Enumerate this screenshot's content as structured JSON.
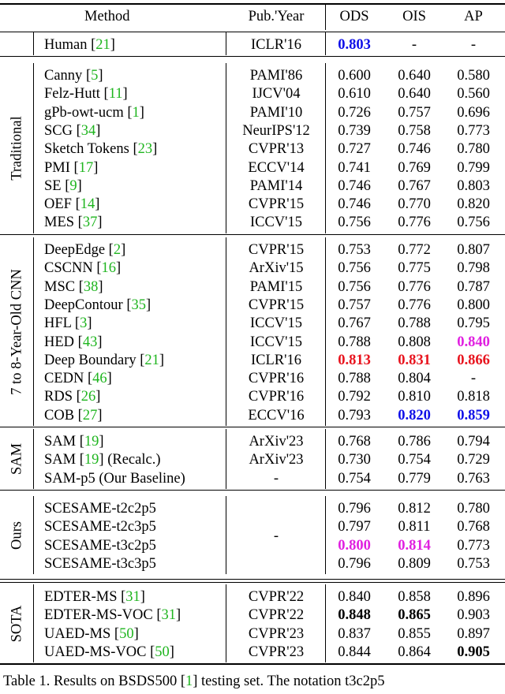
{
  "header": {
    "method": "Method",
    "pub_year": "Pub.'Year",
    "ods": "ODS",
    "ois": "OIS",
    "ap": "AP"
  },
  "groups": [
    {
      "label": "",
      "rows": [
        {
          "method": "Human ",
          "ref": "21",
          "pub": "ICLR'16",
          "ods": "0.803",
          "ois": "-",
          "ap": "-",
          "hl": {
            "ods": "blue"
          }
        }
      ]
    },
    {
      "label": "Traditional",
      "rows": [
        {
          "method": "Canny ",
          "ref": "5",
          "pub": "PAMI'86",
          "ods": "0.600",
          "ois": "0.640",
          "ap": "0.580"
        },
        {
          "method": "Felz-Hutt ",
          "ref": "11",
          "pub": "IJCV'04",
          "ods": "0.610",
          "ois": "0.640",
          "ap": "0.560"
        },
        {
          "method": "gPb-owt-ucm ",
          "ref": "1",
          "pub": "PAMI'10",
          "ods": "0.726",
          "ois": "0.757",
          "ap": "0.696"
        },
        {
          "method": "SCG ",
          "ref": "34",
          "pub": "NeurIPS'12",
          "ods": "0.739",
          "ois": "0.758",
          "ap": "0.773"
        },
        {
          "method": "Sketch Tokens ",
          "ref": "23",
          "pub": "CVPR'13",
          "ods": "0.727",
          "ois": "0.746",
          "ap": "0.780"
        },
        {
          "method": "PMI ",
          "ref": "17",
          "pub": "ECCV'14",
          "ods": "0.741",
          "ois": "0.769",
          "ap": "0.799"
        },
        {
          "method": "SE ",
          "ref": "9",
          "pub": "PAMI'14",
          "ods": "0.746",
          "ois": "0.767",
          "ap": "0.803"
        },
        {
          "method": "OEF ",
          "ref": "14",
          "pub": "CVPR'15",
          "ods": "0.746",
          "ois": "0.770",
          "ap": "0.820"
        },
        {
          "method": "MES ",
          "ref": "37",
          "pub": "ICCV'15",
          "ods": "0.756",
          "ois": "0.776",
          "ap": "0.756"
        }
      ]
    },
    {
      "label": "7 to 8-Year-Old CNN",
      "rows": [
        {
          "method": "DeepEdge ",
          "ref": "2",
          "pub": "CVPR'15",
          "ods": "0.753",
          "ois": "0.772",
          "ap": "0.807"
        },
        {
          "method": "CSCNN ",
          "ref": "16",
          "pub": "ArXiv'15",
          "ods": "0.756",
          "ois": "0.775",
          "ap": "0.798"
        },
        {
          "method": "MSC ",
          "ref": "38",
          "pub": "PAMI'15",
          "ods": "0.756",
          "ois": "0.776",
          "ap": "0.787"
        },
        {
          "method": "DeepContour ",
          "ref": "35",
          "pub": "CVPR'15",
          "ods": "0.757",
          "ois": "0.776",
          "ap": "0.800"
        },
        {
          "method": "HFL ",
          "ref": "3",
          "pub": "ICCV'15",
          "ods": "0.767",
          "ois": "0.788",
          "ap": "0.795"
        },
        {
          "method": "HED ",
          "ref": "43",
          "pub": "ICCV'15",
          "ods": "0.788",
          "ois": "0.808",
          "ap": "0.840",
          "hl": {
            "ap": "mag"
          }
        },
        {
          "method": "Deep Boundary ",
          "ref": "21",
          "pub": "ICLR'16",
          "ods": "0.813",
          "ois": "0.831",
          "ap": "0.866",
          "hl": {
            "ods": "red",
            "ois": "red",
            "ap": "red"
          }
        },
        {
          "method": "CEDN ",
          "ref": "46",
          "pub": "CVPR'16",
          "ods": "0.788",
          "ois": "0.804",
          "ap": "-"
        },
        {
          "method": "RDS ",
          "ref": "26",
          "pub": "CVPR'16",
          "ods": "0.792",
          "ois": "0.810",
          "ap": "0.818"
        },
        {
          "method": "COB ",
          "ref": "27",
          "pub": "ECCV'16",
          "ods": "0.793",
          "ois": "0.820",
          "ap": "0.859",
          "hl": {
            "ois": "blue",
            "ap": "blue"
          }
        }
      ]
    },
    {
      "label": "SAM",
      "rows": [
        {
          "method": "SAM ",
          "ref": "19",
          "pub": "ArXiv'23",
          "ods": "0.768",
          "ois": "0.786",
          "ap": "0.794"
        },
        {
          "method": "SAM ",
          "ref": "19",
          "suffix": " (Recalc.)",
          "pub": "ArXiv'23",
          "ods": "0.730",
          "ois": "0.754",
          "ap": "0.729"
        },
        {
          "method": "SAM-p5 (Our Baseline)",
          "pub": "-",
          "ods": "0.754",
          "ois": "0.779",
          "ap": "0.763"
        }
      ]
    },
    {
      "label": "Ours",
      "shared_pub": "-",
      "rows": [
        {
          "method": "SCESAME-t2c2p5",
          "ods": "0.796",
          "ois": "0.812",
          "ap": "0.780"
        },
        {
          "method": "SCESAME-t2c3p5",
          "ods": "0.797",
          "ois": "0.811",
          "ap": "0.768"
        },
        {
          "method": "SCESAME-t3c2p5",
          "ods": "0.800",
          "ois": "0.814",
          "ap": "0.773",
          "hl": {
            "ods": "mag",
            "ois": "mag"
          }
        },
        {
          "method": "SCESAME-t3c3p5",
          "ods": "0.796",
          "ois": "0.809",
          "ap": "0.753"
        }
      ]
    },
    {
      "label": "SOTA",
      "rows": [
        {
          "method": "EDTER-MS ",
          "ref": "31",
          "pub": "CVPR'22",
          "ods": "0.840",
          "ois": "0.858",
          "ap": "0.896"
        },
        {
          "method": "EDTER-MS-VOC ",
          "ref": "31",
          "pub": "CVPR'22",
          "ods": "0.848",
          "ois": "0.865",
          "ap": "0.903",
          "hl": {
            "ods": "bold",
            "ois": "bold"
          }
        },
        {
          "method": "UAED-MS ",
          "ref": "50",
          "pub": "CVPR'23",
          "ods": "0.837",
          "ois": "0.855",
          "ap": "0.897"
        },
        {
          "method": "UAED-MS-VOC ",
          "ref": "50",
          "pub": "CVPR'23",
          "ods": "0.844",
          "ois": "0.864",
          "ap": "0.905",
          "hl": {
            "ap": "bold"
          }
        }
      ]
    }
  ],
  "caption": {
    "prefix": "Table 1. Results on BSDS500 ",
    "ref": "1",
    "suffix": " testing set. The notation t3c2p5"
  }
}
